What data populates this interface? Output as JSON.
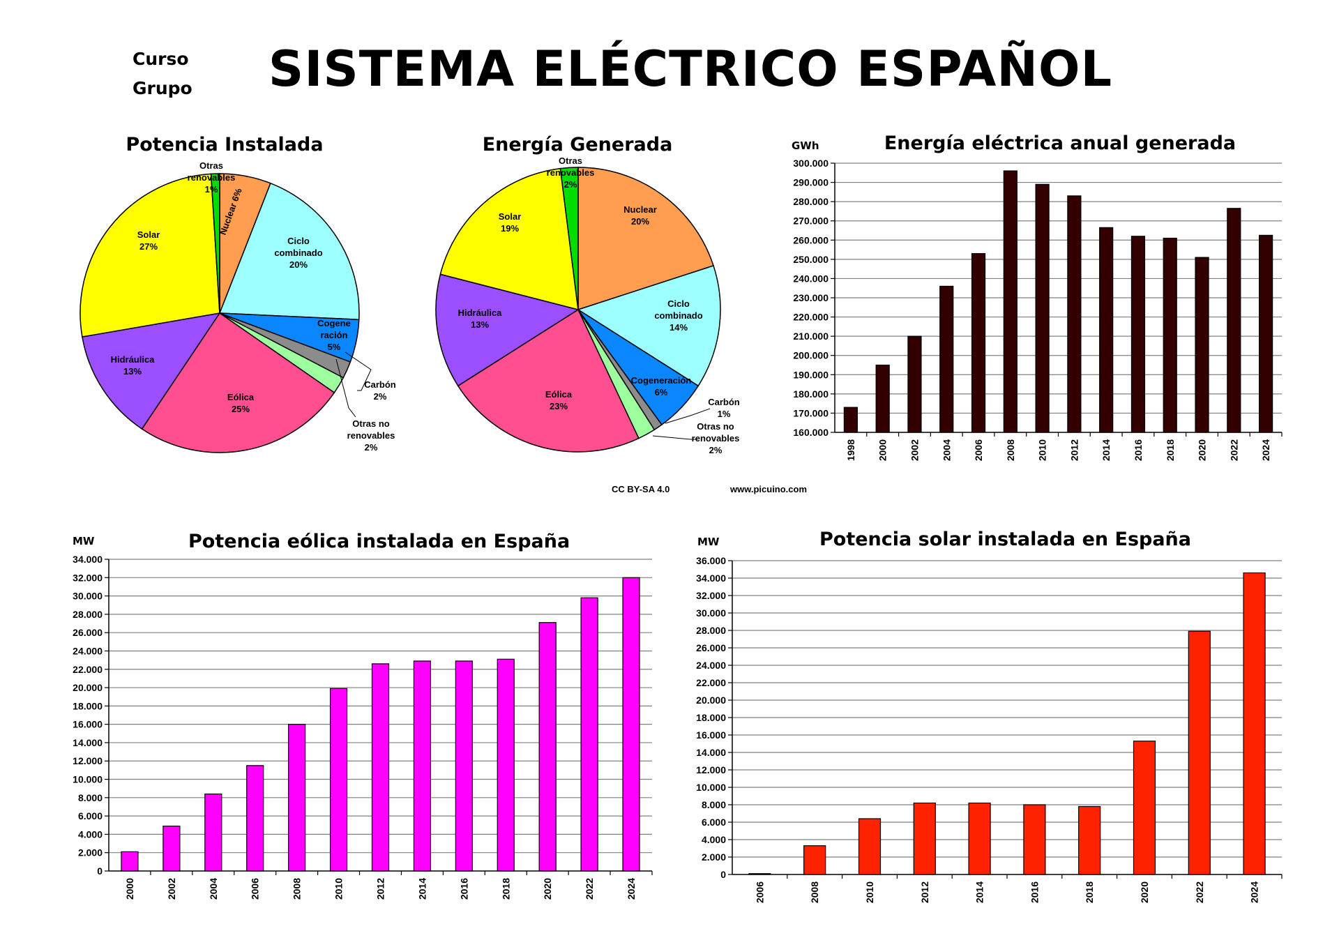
{
  "header": {
    "title": "SISTEMA ELÉCTRICO ESPAÑOL",
    "curso_label": "Curso",
    "grupo_label": "Grupo"
  },
  "footer": {
    "license": "CC BY-SA 4.0",
    "website": "www.picuino.com"
  },
  "colors": {
    "nuclear": "#FF9E50",
    "ciclo": "#9EFFFF",
    "cogeneracion": "#0A87FF",
    "carbon": "#8C8C8C",
    "otras_no_renovables": "#9EFF9E",
    "eolica": "#FF4F91",
    "hidraulica": "#9C4FFF",
    "solar": "#FFFF00",
    "otras_renovables": "#00DD00",
    "annual_bar": "#330000",
    "wind_bar": "#FF00FF",
    "solar_bar": "#FF2200"
  },
  "chart_data": [
    {
      "id": "potencia-instalada",
      "type": "pie",
      "title": "Potencia Instalada",
      "slices": [
        {
          "key": "nuclear",
          "name": "Nuclear",
          "value": 6,
          "label_lines": [
            "Nuclear 6%"
          ]
        },
        {
          "key": "ciclo",
          "name": "Ciclo combinado",
          "value": 20,
          "label_lines": [
            "Ciclo",
            "combinado",
            "20%"
          ]
        },
        {
          "key": "cogeneracion",
          "name": "Cogeneración",
          "value": 5,
          "label_lines": [
            "Cogene",
            "ración",
            "5%"
          ]
        },
        {
          "key": "carbon",
          "name": "Carbón",
          "value": 2,
          "label_lines": [
            "Carbón",
            "2%"
          ]
        },
        {
          "key": "otras_no_renovables",
          "name": "Otras no renovables",
          "value": 2,
          "label_lines": [
            "Otras no",
            "renovables",
            "2%"
          ]
        },
        {
          "key": "eolica",
          "name": "Eólica",
          "value": 25,
          "label_lines": [
            "Eólica",
            "25%"
          ]
        },
        {
          "key": "hidraulica",
          "name": "Hidráulica",
          "value": 13,
          "label_lines": [
            "Hidráulica",
            "13%"
          ]
        },
        {
          "key": "solar",
          "name": "Solar",
          "value": 27,
          "label_lines": [
            "Solar",
            "27%"
          ]
        },
        {
          "key": "otras_renovables",
          "name": "Otras renovables",
          "value": 1,
          "label_lines": [
            "Otras",
            "renovables",
            "1%"
          ]
        }
      ]
    },
    {
      "id": "energia-generada",
      "type": "pie",
      "title": "Energía Generada",
      "slices": [
        {
          "key": "nuclear",
          "name": "Nuclear",
          "value": 20,
          "label_lines": [
            "Nuclear",
            "20%"
          ]
        },
        {
          "key": "ciclo",
          "name": "Ciclo combinado",
          "value": 14,
          "label_lines": [
            "Ciclo",
            "combinado",
            "14%"
          ]
        },
        {
          "key": "cogeneracion",
          "name": "Cogeneración",
          "value": 6,
          "label_lines": [
            "Cogeneración",
            "6%"
          ]
        },
        {
          "key": "carbon",
          "name": "Carbón",
          "value": 1,
          "label_lines": [
            "Carbón",
            "1%"
          ]
        },
        {
          "key": "otras_no_renovables",
          "name": "Otras no renovables",
          "value": 2,
          "label_lines": [
            "Otras no",
            "renovables",
            "2%"
          ]
        },
        {
          "key": "eolica",
          "name": "Eólica",
          "value": 23,
          "label_lines": [
            "Eólica",
            "23%"
          ]
        },
        {
          "key": "hidraulica",
          "name": "Hidráulica",
          "value": 13,
          "label_lines": [
            "Hidráulica",
            "13%"
          ]
        },
        {
          "key": "solar",
          "name": "Solar",
          "value": 19,
          "label_lines": [
            "Solar",
            "19%"
          ]
        },
        {
          "key": "otras_renovables",
          "name": "Otras renovables",
          "value": 2,
          "label_lines": [
            "Otras",
            "renovables",
            "2%"
          ]
        }
      ]
    },
    {
      "id": "energia-anual",
      "type": "bar",
      "title": "Energía eléctrica anual generada",
      "ylabel": "GWh",
      "ylim": [
        160000,
        300000
      ],
      "ytick_step": 10000,
      "grid": true,
      "categories": [
        "1998",
        "2000",
        "2002",
        "2004",
        "2006",
        "2008",
        "2010",
        "2012",
        "2014",
        "2016",
        "2018",
        "2020",
        "2022",
        "2024"
      ],
      "values": [
        173000,
        195000,
        210000,
        236000,
        253000,
        296000,
        289000,
        283000,
        266500,
        262000,
        261000,
        251000,
        276500,
        262500
      ]
    },
    {
      "id": "potencia-eolica",
      "type": "bar",
      "title": "Potencia eólica instalada en España",
      "ylabel": "MW",
      "ylim": [
        0,
        34000
      ],
      "ytick_step": 2000,
      "grid": true,
      "categories": [
        "2000",
        "2002",
        "2004",
        "2006",
        "2008",
        "2010",
        "2012",
        "2014",
        "2016",
        "2018",
        "2020",
        "2022",
        "2024"
      ],
      "values": [
        2100,
        4900,
        8400,
        11500,
        16000,
        19900,
        22600,
        22900,
        22900,
        23100,
        27100,
        29800,
        32000
      ]
    },
    {
      "id": "potencia-solar",
      "type": "bar",
      "title": "Potencia solar instalada en España",
      "ylabel": "MW",
      "ylim": [
        0,
        36000
      ],
      "ytick_step": 2000,
      "grid": true,
      "categories": [
        "2006",
        "2008",
        "2010",
        "2012",
        "2014",
        "2016",
        "2018",
        "2020",
        "2022",
        "2024"
      ],
      "values": [
        100,
        3300,
        6400,
        8200,
        8200,
        8000,
        7800,
        15300,
        27900,
        34600
      ]
    }
  ]
}
